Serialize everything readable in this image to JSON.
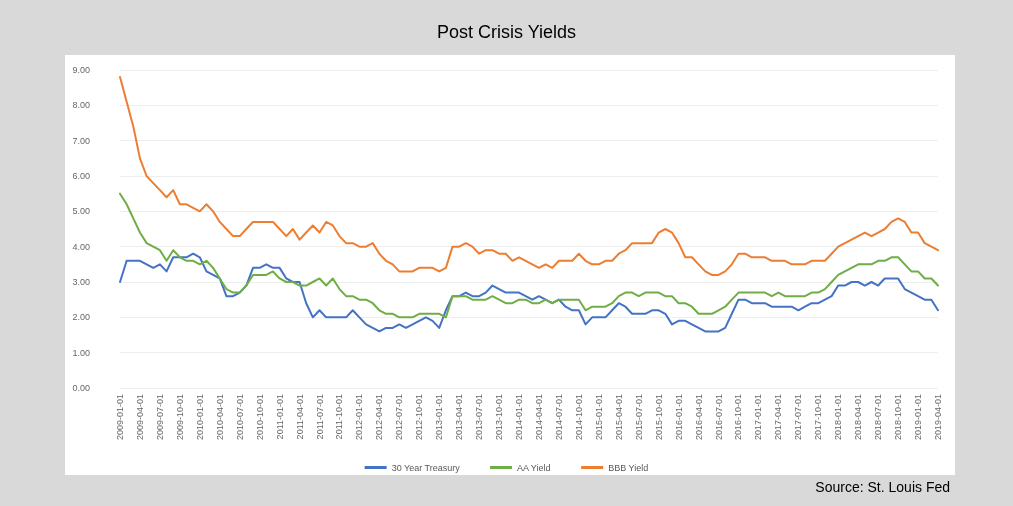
{
  "chart_data": {
    "type": "line",
    "title": "Post Crisis Yields",
    "annotations": [
      "Source: St. Louis Fed"
    ],
    "categories": [
      "2009-01-01",
      null,
      null,
      "2009-04-01",
      null,
      null,
      "2009-07-01",
      null,
      null,
      "2009-10-01",
      null,
      null,
      "2010-01-01",
      null,
      null,
      "2010-04-01",
      null,
      null,
      "2010-07-01",
      null,
      null,
      "2010-10-01",
      null,
      null,
      "2011-01-01",
      null,
      null,
      "2011-04-01",
      null,
      null,
      "2011-07-01",
      null,
      null,
      "2011-10-01",
      null,
      null,
      "2012-01-01",
      null,
      null,
      "2012-04-01",
      null,
      null,
      "2012-07-01",
      null,
      null,
      "2012-10-01",
      null,
      null,
      "2013-01-01",
      null,
      null,
      "2013-04-01",
      null,
      null,
      "2013-07-01",
      null,
      null,
      "2013-10-01",
      null,
      null,
      "2014-01-01",
      null,
      null,
      "2014-04-01",
      null,
      null,
      "2014-07-01",
      null,
      null,
      "2014-10-01",
      null,
      null,
      "2015-01-01",
      null,
      null,
      "2015-04-01",
      null,
      null,
      "2015-07-01",
      null,
      null,
      "2015-10-01",
      null,
      null,
      "2016-01-01",
      null,
      null,
      "2016-04-01",
      null,
      null,
      "2016-07-01",
      null,
      null,
      "2016-10-01",
      null,
      null,
      "2017-01-01",
      null,
      null,
      "2017-04-01",
      null,
      null,
      "2017-07-01",
      null,
      null,
      "2017-10-01",
      null,
      null,
      "2018-01-01",
      null,
      null,
      "2018-04-01",
      null,
      null,
      "2018-07-01",
      null,
      null,
      "2018-10-01",
      null,
      null,
      "2019-01-01",
      null,
      null,
      "2019-04-01"
    ],
    "series": [
      {
        "name": "30 Year Treasury",
        "color": "#4472c4",
        "values": [
          3.0,
          3.6,
          3.6,
          3.6,
          3.5,
          3.4,
          3.5,
          3.3,
          3.7,
          3.7,
          3.7,
          3.8,
          3.7,
          3.3,
          3.2,
          3.1,
          2.6,
          2.6,
          2.7,
          2.9,
          3.4,
          3.4,
          3.5,
          3.4,
          3.4,
          3.1,
          3.0,
          3.0,
          2.4,
          2.0,
          2.2,
          2.0,
          2.0,
          2.0,
          2.0,
          2.2,
          2.0,
          1.8,
          1.7,
          1.6,
          1.7,
          1.7,
          1.8,
          1.7,
          1.8,
          1.9,
          2.0,
          1.9,
          1.7,
          2.2,
          2.6,
          2.6,
          2.7,
          2.6,
          2.6,
          2.7,
          2.9,
          2.8,
          2.7,
          2.7,
          2.7,
          2.6,
          2.5,
          2.6,
          2.5,
          2.4,
          2.5,
          2.3,
          2.2,
          2.2,
          1.8,
          2.0,
          2.0,
          2.0,
          2.2,
          2.4,
          2.3,
          2.1,
          2.1,
          2.1,
          2.2,
          2.2,
          2.1,
          1.8,
          1.9,
          1.9,
          1.8,
          1.7,
          1.6,
          1.6,
          1.6,
          1.7,
          2.1,
          2.5,
          2.5,
          2.4,
          2.4,
          2.4,
          2.3,
          2.3,
          2.3,
          2.3,
          2.2,
          2.3,
          2.4,
          2.4,
          2.5,
          2.6,
          2.9,
          2.9,
          3.0,
          3.0,
          2.9,
          3.0,
          2.9,
          3.1,
          3.1,
          3.1,
          2.8,
          2.7,
          2.6,
          2.5,
          2.5,
          2.2
        ]
      },
      {
        "name": "AA Yield",
        "color": "#70ad47",
        "values": [
          5.5,
          5.2,
          4.8,
          4.4,
          4.1,
          4.0,
          3.9,
          3.6,
          3.9,
          3.7,
          3.6,
          3.6,
          3.5,
          3.6,
          3.4,
          3.1,
          2.8,
          2.7,
          2.7,
          2.9,
          3.2,
          3.2,
          3.2,
          3.3,
          3.1,
          3.0,
          3.0,
          2.9,
          2.9,
          3.0,
          3.1,
          2.9,
          3.1,
          2.8,
          2.6,
          2.6,
          2.5,
          2.5,
          2.4,
          2.2,
          2.1,
          2.1,
          2.0,
          2.0,
          2.0,
          2.1,
          2.1,
          2.1,
          2.1,
          2.0,
          2.6,
          2.6,
          2.6,
          2.5,
          2.5,
          2.5,
          2.6,
          2.5,
          2.4,
          2.4,
          2.5,
          2.5,
          2.4,
          2.4,
          2.5,
          2.4,
          2.5,
          2.5,
          2.5,
          2.5,
          2.2,
          2.3,
          2.3,
          2.3,
          2.4,
          2.6,
          2.7,
          2.7,
          2.6,
          2.7,
          2.7,
          2.7,
          2.6,
          2.6,
          2.4,
          2.4,
          2.3,
          2.1,
          2.1,
          2.1,
          2.2,
          2.3,
          2.5,
          2.7,
          2.7,
          2.7,
          2.7,
          2.7,
          2.6,
          2.7,
          2.6,
          2.6,
          2.6,
          2.6,
          2.7,
          2.7,
          2.8,
          3.0,
          3.2,
          3.3,
          3.4,
          3.5,
          3.5,
          3.5,
          3.6,
          3.6,
          3.7,
          3.7,
          3.5,
          3.3,
          3.3,
          3.1,
          3.1,
          2.9
        ]
      },
      {
        "name": "BBB Yield",
        "color": "#ed7d31",
        "values": [
          8.8,
          8.1,
          7.4,
          6.5,
          6.0,
          5.8,
          5.6,
          5.4,
          5.6,
          5.2,
          5.2,
          5.1,
          5.0,
          5.2,
          5.0,
          4.7,
          4.5,
          4.3,
          4.3,
          4.5,
          4.7,
          4.7,
          4.7,
          4.7,
          4.5,
          4.3,
          4.5,
          4.2,
          4.4,
          4.6,
          4.4,
          4.7,
          4.6,
          4.3,
          4.1,
          4.1,
          4.0,
          4.0,
          4.1,
          3.8,
          3.6,
          3.5,
          3.3,
          3.3,
          3.3,
          3.4,
          3.4,
          3.4,
          3.3,
          3.4,
          4.0,
          4.0,
          4.1,
          4.0,
          3.8,
          3.9,
          3.9,
          3.8,
          3.8,
          3.6,
          3.7,
          3.6,
          3.5,
          3.4,
          3.5,
          3.4,
          3.6,
          3.6,
          3.6,
          3.8,
          3.6,
          3.5,
          3.5,
          3.6,
          3.6,
          3.8,
          3.9,
          4.1,
          4.1,
          4.1,
          4.1,
          4.4,
          4.5,
          4.4,
          4.1,
          3.7,
          3.7,
          3.5,
          3.3,
          3.2,
          3.2,
          3.3,
          3.5,
          3.8,
          3.8,
          3.7,
          3.7,
          3.7,
          3.6,
          3.6,
          3.6,
          3.5,
          3.5,
          3.5,
          3.6,
          3.6,
          3.6,
          3.8,
          4.0,
          4.1,
          4.2,
          4.3,
          4.4,
          4.3,
          4.4,
          4.5,
          4.7,
          4.8,
          4.7,
          4.4,
          4.4,
          4.1,
          4.0,
          3.9
        ]
      }
    ],
    "ylim": [
      0,
      9
    ],
    "yticks": [
      {
        "value": 0,
        "label": "0.00"
      },
      {
        "value": 1,
        "label": "1.00"
      },
      {
        "value": 2,
        "label": "2.00"
      },
      {
        "value": 3,
        "label": "3.00"
      },
      {
        "value": 4,
        "label": "4.00"
      },
      {
        "value": 5,
        "label": "5.00"
      },
      {
        "value": 6,
        "label": "6.00"
      },
      {
        "value": 7,
        "label": "7.00"
      },
      {
        "value": 8,
        "label": "8.00"
      },
      {
        "value": 9,
        "label": "9.00"
      }
    ],
    "grid": "y",
    "legend": "bottom",
    "marker": "none",
    "line_style": "solid"
  }
}
